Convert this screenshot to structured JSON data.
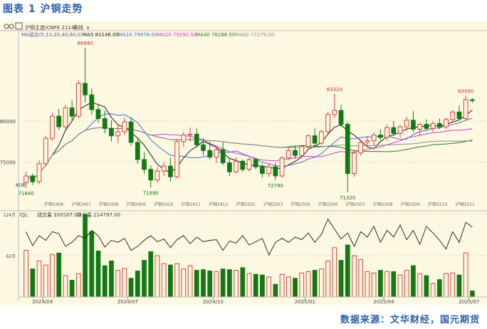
{
  "figure_title": "图表 1  沪铜走势",
  "source": "数据来源：文华财经，国元期货",
  "toolbar": {
    "period": "周线"
  },
  "header": {
    "instrument": "沪铜主连(CNFE 2114)",
    "ma_label": "MA组合(5,10,20,40,60,0)",
    "ma5": "MA5 81146.00",
    "ma10": "MA10 79978.00",
    "ma20": "MA20 79292.00",
    "ma40": "MA40 78288.50",
    "ma60": "MA60 77279.00"
  },
  "sub_header": {
    "label": "CJL",
    "volume": "成交量  100507.00",
    "oi": "持仓量  214797.00"
  },
  "contract_labels": [
    "沪铜2406",
    "沪铜2407",
    "沪铜2408",
    "沪铜2409",
    "沪铜2410",
    "沪铜2411",
    "沪铜2412",
    "沪铜2501",
    "沪铜2503",
    "沪铜2505",
    "沪铜2506",
    "沪铜2507",
    "沪铜2508",
    "沪铜2509",
    "沪铜2510",
    "沪铜2511"
  ],
  "left_marker": "81周",
  "chart_data": [
    {
      "type": "candlestick",
      "title": "",
      "y_ticks": [
        75000,
        80000
      ],
      "y_tick_labels": [
        "75000",
        "80000"
      ],
      "x_tick_labels": [
        "2024/04",
        "2024/07",
        "2024/10",
        "2025/01",
        "2025/04",
        "2025/07"
      ],
      "annotations": [
        "88940",
        "71840",
        "71890",
        "72780",
        "83320",
        "71320",
        "83090"
      ],
      "series": [
        {
          "name": "MA5",
          "color": "#1a1a1a"
        },
        {
          "name": "MA10",
          "color": "#3b6fd1"
        },
        {
          "name": "MA20",
          "color": "#d23bd2"
        },
        {
          "name": "MA40",
          "color": "#2f7a2f"
        },
        {
          "name": "MA60",
          "color": "#8c8c8c"
        }
      ],
      "candles": [
        [
          72500,
          73800,
          71840,
          73300
        ],
        [
          73300,
          73600,
          72200,
          72600
        ],
        [
          72600,
          75200,
          72300,
          74800
        ],
        [
          74800,
          78200,
          74500,
          77900
        ],
        [
          77900,
          81000,
          77600,
          80600
        ],
        [
          80600,
          81500,
          78900,
          79300
        ],
        [
          79300,
          82000,
          79000,
          81600
        ],
        [
          81600,
          82500,
          80100,
          80600
        ],
        [
          80600,
          85000,
          80300,
          84600
        ],
        [
          84600,
          88940,
          82300,
          83200
        ],
        [
          83200,
          84000,
          80800,
          81400
        ],
        [
          81400,
          82000,
          79800,
          80300
        ],
        [
          80300,
          81300,
          78500,
          79100
        ],
        [
          79100,
          80100,
          77500,
          78200
        ],
        [
          78200,
          79500,
          77300,
          78700
        ],
        [
          78700,
          80400,
          78300,
          79900
        ],
        [
          79900,
          80500,
          77000,
          77400
        ],
        [
          77400,
          78000,
          74800,
          75300
        ],
        [
          75300,
          76200,
          73600,
          74100
        ],
        [
          74100,
          74600,
          71890,
          72800
        ],
        [
          72800,
          74400,
          72500,
          73900
        ],
        [
          73900,
          75000,
          73300,
          74500
        ],
        [
          74500,
          75500,
          72600,
          73200
        ],
        [
          73200,
          77800,
          73000,
          77500
        ],
        [
          77500,
          78700,
          76800,
          78300
        ],
        [
          78300,
          79200,
          77500,
          78400
        ],
        [
          78400,
          79100,
          76800,
          77100
        ],
        [
          77100,
          77900,
          75800,
          76400
        ],
        [
          76400,
          77500,
          75300,
          75600
        ],
        [
          75600,
          76800,
          74900,
          76500
        ],
        [
          76500,
          77400,
          74600,
          74900
        ],
        [
          74900,
          75500,
          73300,
          73800
        ],
        [
          73800,
          75600,
          73600,
          75100
        ],
        [
          75100,
          75300,
          73800,
          74100
        ],
        [
          74100,
          75600,
          73800,
          75300
        ],
        [
          75300,
          75500,
          74100,
          74400
        ],
        [
          74400,
          74800,
          73100,
          73600
        ],
        [
          73600,
          74800,
          73200,
          74400
        ],
        [
          74400,
          74900,
          72780,
          73300
        ],
        [
          73300,
          75700,
          73100,
          75500
        ],
        [
          75500,
          76700,
          75200,
          76400
        ],
        [
          76400,
          77000,
          75400,
          75800
        ],
        [
          75800,
          77100,
          75600,
          76900
        ],
        [
          76900,
          78400,
          76600,
          78200
        ],
        [
          78200,
          79100,
          76800,
          77300
        ],
        [
          77300,
          79000,
          77100,
          78700
        ],
        [
          78700,
          81100,
          78300,
          80800
        ],
        [
          80800,
          83320,
          80400,
          81300
        ],
        [
          81300,
          82000,
          79300,
          79600
        ],
        [
          79600,
          79900,
          71320,
          73600
        ],
        [
          73600,
          76400,
          73200,
          76100
        ],
        [
          76100,
          77700,
          75800,
          77400
        ],
        [
          77400,
          78200,
          76900,
          77600
        ],
        [
          77600,
          78600,
          77000,
          78300
        ],
        [
          78300,
          79000,
          77700,
          78000
        ],
        [
          78000,
          79600,
          77600,
          79200
        ],
        [
          79200,
          80000,
          78200,
          78500
        ],
        [
          78500,
          79500,
          78000,
          79300
        ],
        [
          79300,
          80500,
          78800,
          80100
        ],
        [
          80100,
          81200,
          78600,
          79000
        ],
        [
          79000,
          79800,
          78200,
          79600
        ],
        [
          79600,
          80200,
          78800,
          79100
        ],
        [
          79100,
          80000,
          78700,
          79700
        ],
        [
          79700,
          80300,
          79000,
          79300
        ],
        [
          79300,
          80400,
          79000,
          80200
        ],
        [
          80200,
          81300,
          79900,
          81100
        ],
        [
          81100,
          81900,
          80100,
          80300
        ],
        [
          80300,
          83090,
          80100,
          82600
        ],
        [
          82600,
          82800,
          82200,
          82500
        ]
      ]
    },
    {
      "type": "bar",
      "title": "",
      "ylabel": "",
      "y_tick_labels": [
        "124万",
        "62万"
      ],
      "y_ticks": [
        1240000,
        620000
      ],
      "series": [
        {
          "name": "成交量",
          "values": [
            700000,
            420000,
            540000,
            480000,
            640000,
            660000,
            320000,
            250000,
            350000,
            1240000,
            980000,
            690000,
            470000,
            540000,
            400000,
            430000,
            280000,
            390000,
            550000,
            680000,
            620000,
            500000,
            480000,
            500000,
            420000,
            470000,
            400000,
            410000,
            390000,
            380000,
            420000,
            410000,
            400000,
            440000,
            350000,
            340000,
            330000,
            300000,
            190000,
            340000,
            300000,
            280000,
            360000,
            380000,
            400000,
            420000,
            540000,
            740000,
            550000,
            780000,
            620000,
            560000,
            380000,
            360000,
            400000,
            380000,
            380000,
            330000,
            400000,
            470000,
            350000,
            320000,
            200000,
            260000,
            350000,
            360000,
            330000,
            660000,
            90000
          ]
        }
      ]
    },
    {
      "type": "line",
      "series": [
        {
          "name": "持仓量",
          "values": [
            980000,
            770000,
            920000,
            850000,
            980000,
            950000,
            760000,
            820000,
            920000,
            880000,
            1000000,
            920000,
            750000,
            850000,
            820000,
            880000,
            700000,
            760000,
            850000,
            920000,
            830000,
            870000,
            740000,
            860000,
            920000,
            800000,
            900000,
            830000,
            850000,
            860000,
            700000,
            840000,
            810000,
            920000,
            780000,
            830000,
            880000,
            630000,
            820000,
            880000,
            820000,
            900000,
            860000,
            960000,
            820000,
            940000,
            1170000,
            1020000,
            870000,
            960000,
            760000,
            980000,
            900000,
            1060000,
            820000,
            1000000,
            900000,
            1080000,
            860000,
            1000000,
            790000,
            1060000,
            960000,
            850000,
            720000,
            980000,
            820000,
            1120000,
            1050000
          ]
        }
      ]
    }
  ]
}
